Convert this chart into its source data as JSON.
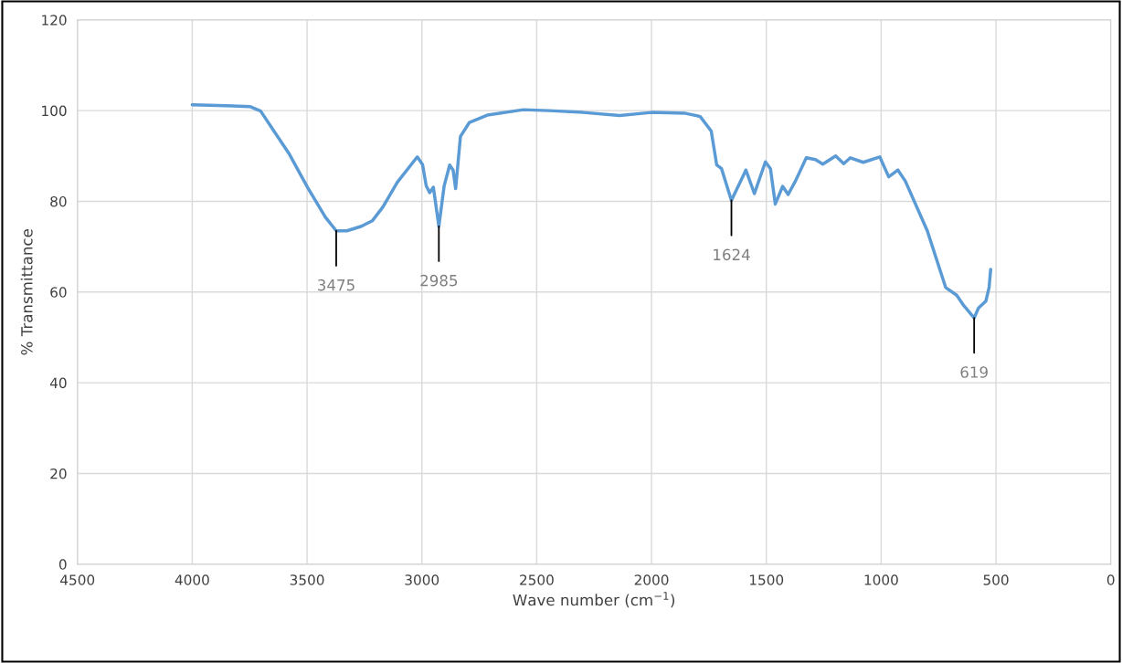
{
  "chart_data": {
    "type": "line",
    "xlabel": "Wave number (cm$^{−1}$)",
    "ylabel": "% Transmittance",
    "xlim": [
      4500,
      0
    ],
    "xticks": [
      4500,
      4000,
      3500,
      3000,
      2500,
      2000,
      1500,
      1000,
      500,
      0
    ],
    "ylim": [
      0,
      120
    ],
    "yticks": [
      0,
      20,
      40,
      60,
      80,
      100,
      120
    ],
    "grid": true,
    "marker": "none",
    "line_style": "solid",
    "series": [
      {
        "color": "#5b9bd5",
        "x": [
          4000,
          3749,
          3702,
          3639,
          3577,
          3498,
          3420,
          3373,
          3326,
          3263,
          3216,
          3169,
          3107,
          3020,
          2997,
          2981,
          2966,
          2950,
          2926,
          2903,
          2879,
          2864,
          2853,
          2832,
          2793,
          2715,
          2558,
          2448,
          2298,
          2139,
          2000,
          1852,
          1788,
          1740,
          1716,
          1695,
          1652,
          1589,
          1552,
          1504,
          1482,
          1461,
          1429,
          1405,
          1373,
          1326,
          1286,
          1254,
          1198,
          1163,
          1134,
          1078,
          1006,
          967,
          927,
          895,
          799,
          719,
          671,
          640,
          595,
          576,
          544,
          530,
          523
        ],
        "values": [
          101.3,
          100.9,
          99.9,
          95.1,
          90.4,
          83.1,
          76.5,
          73.5,
          73.5,
          74.5,
          75.7,
          78.8,
          84.2,
          89.8,
          88.1,
          83.4,
          81.9,
          83.1,
          74.5,
          83.4,
          88.0,
          86.9,
          82.8,
          94.3,
          97.4,
          99.0,
          100.2,
          100.0,
          99.6,
          98.9,
          99.6,
          99.4,
          98.7,
          95.5,
          88.0,
          87.2,
          80.2,
          86.9,
          81.7,
          88.7,
          87.2,
          79.4,
          83.3,
          81.5,
          84.5,
          89.6,
          89.2,
          88.2,
          90.0,
          88.3,
          89.6,
          88.6,
          89.8,
          85.4,
          86.9,
          84.5,
          73.5,
          61.0,
          59.3,
          57.0,
          54.3,
          56.5,
          58.0,
          61.0,
          65.0
        ]
      }
    ],
    "annotations": [
      {
        "text": "3475",
        "x": 3373,
        "y": 73.5
      },
      {
        "text": "2985",
        "x": 2926,
        "y": 74.5
      },
      {
        "text": "1624",
        "x": 1652,
        "y": 80.2
      },
      {
        "text": "619",
        "x": 595,
        "y": 54.3
      }
    ]
  }
}
